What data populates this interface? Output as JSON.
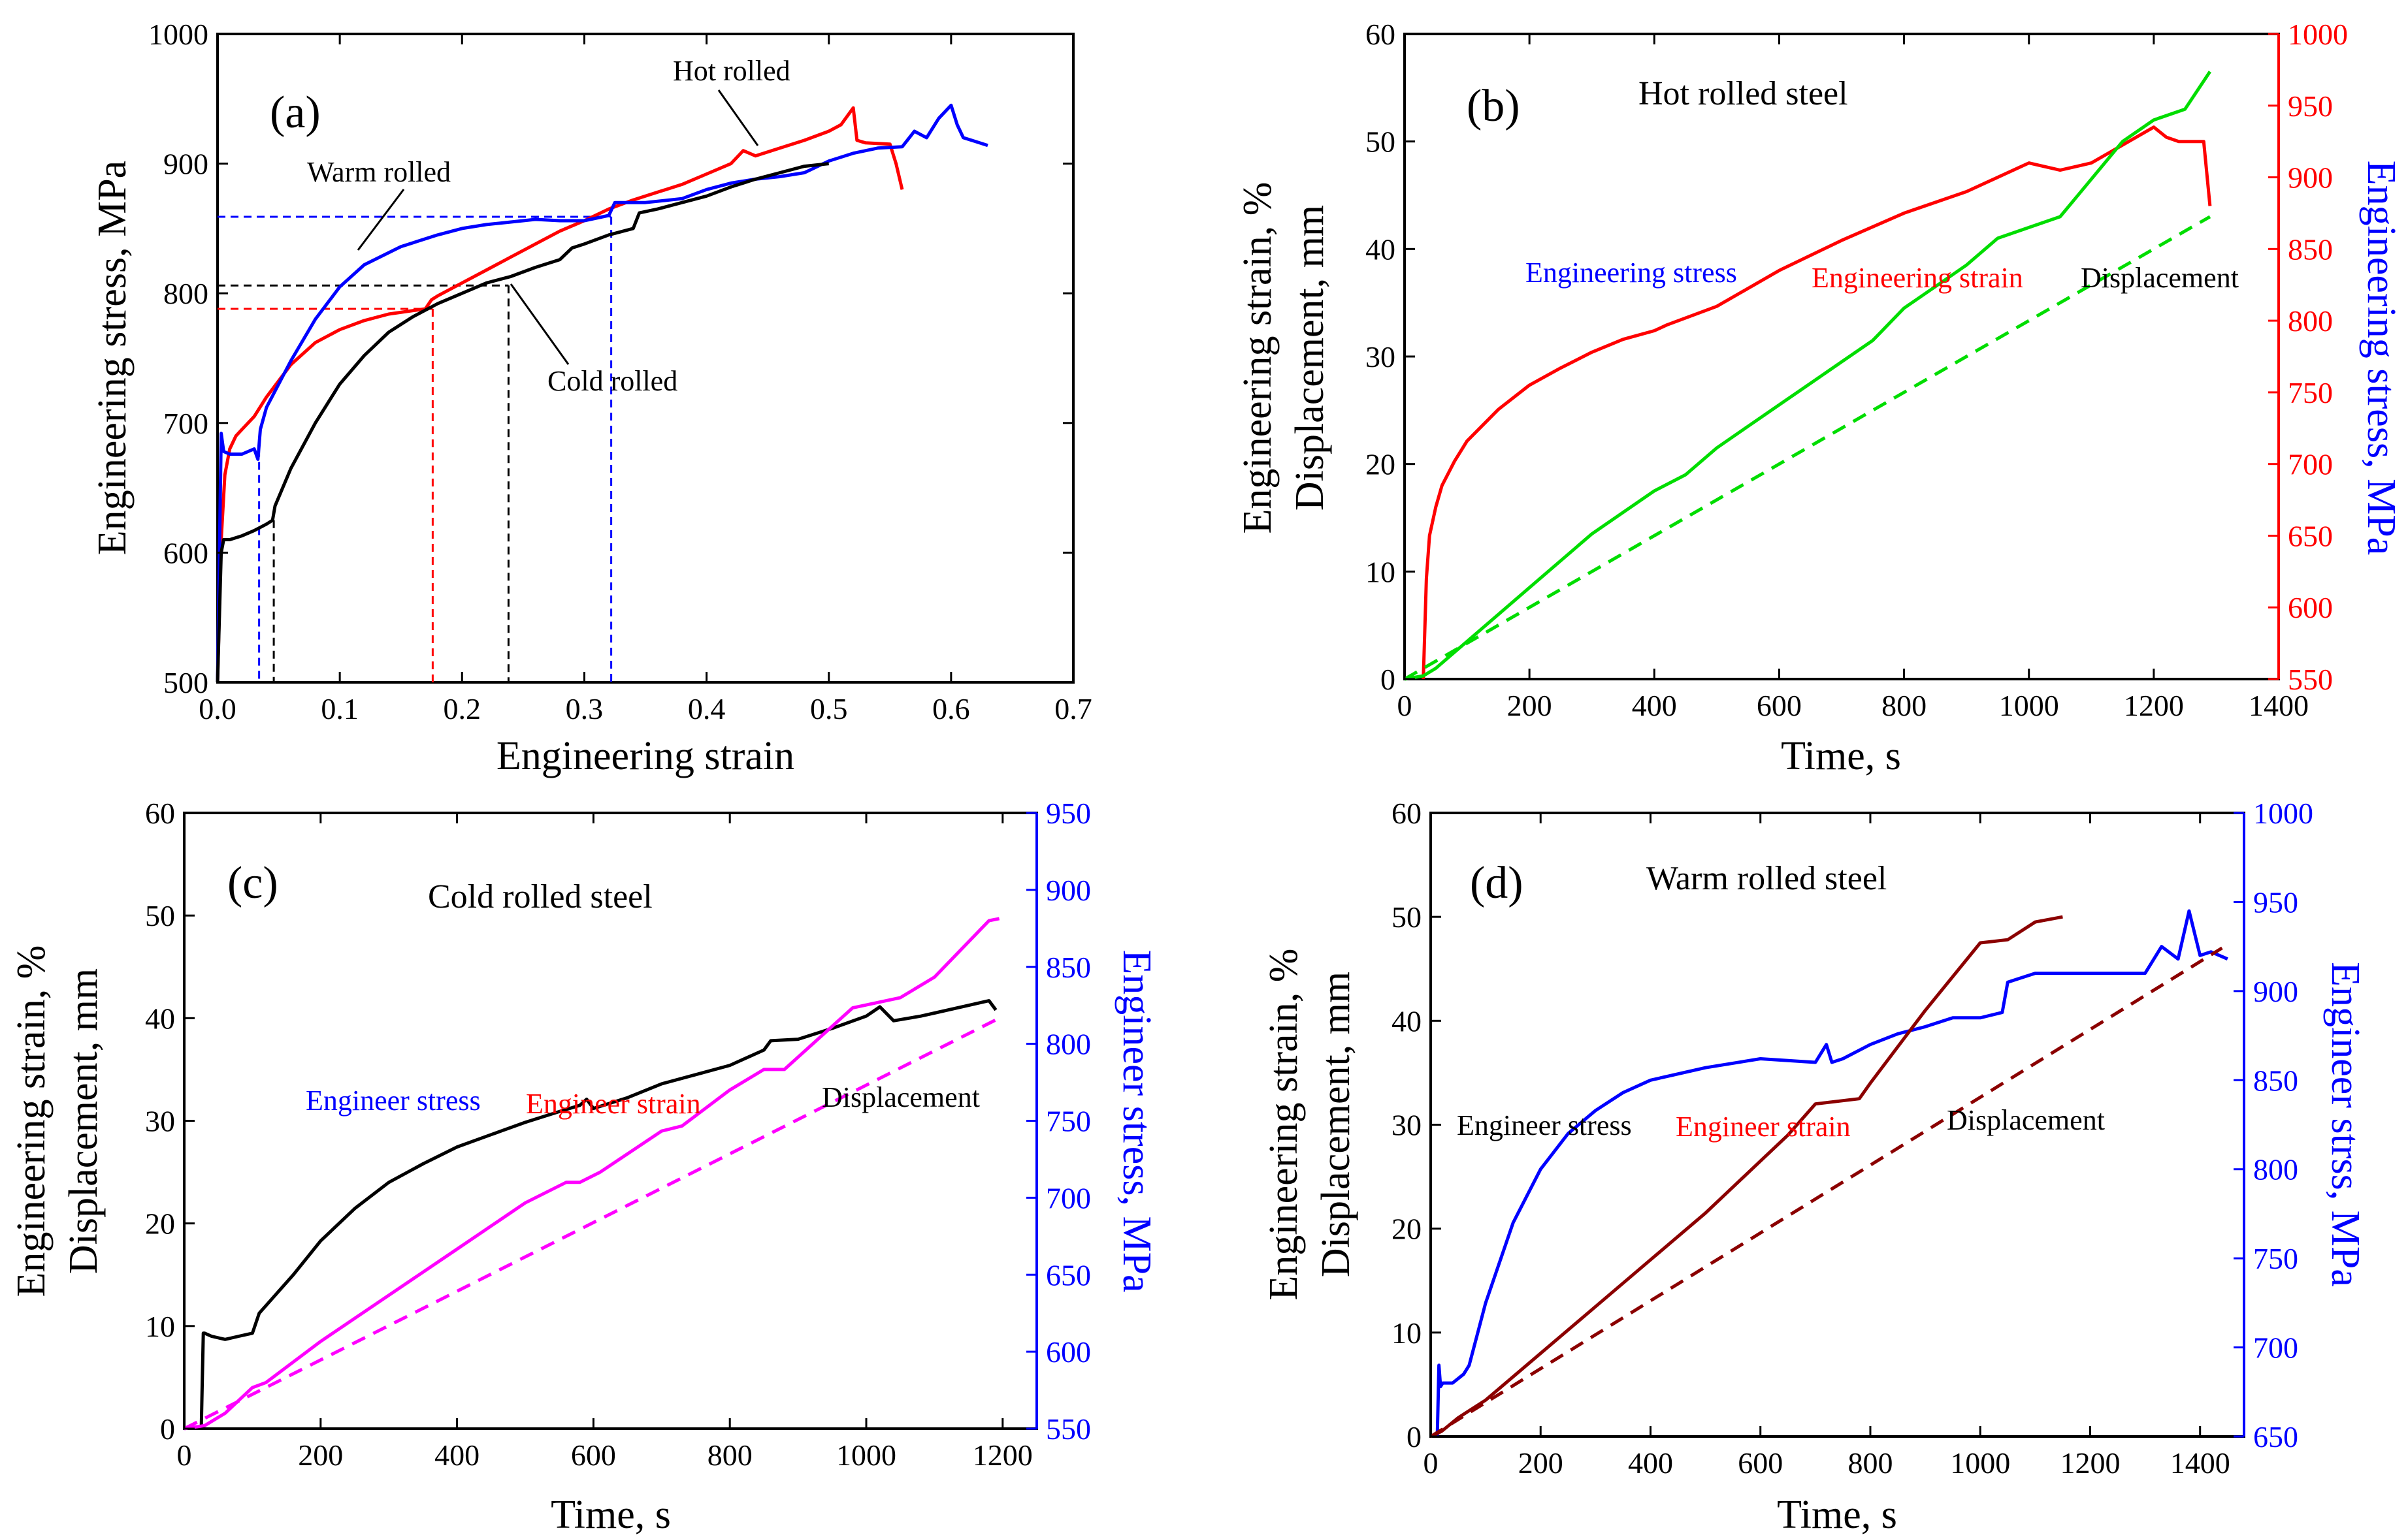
{
  "chart_data": [
    {
      "id": "a",
      "type": "line",
      "panel_label": "(a)",
      "xlabel": "Engineering strain",
      "ylabel": "Engineering stress, MPa",
      "xlim": [
        0.0,
        0.7
      ],
      "ylim": [
        500,
        1000
      ],
      "xticks": [
        "0.0",
        "0.1",
        "0.2",
        "0.3",
        "0.4",
        "0.5",
        "0.6",
        "0.7"
      ],
      "yticks": [
        "500",
        "600",
        "700",
        "800",
        "900",
        "1000"
      ],
      "annotations": {
        "warm": "Warm rolled",
        "hot": "Hot rolled",
        "cold": "Cold rolled"
      },
      "series": [
        {
          "name": "Hot rolled",
          "color": "#ff0000",
          "x": [
            0.0,
            0.003,
            0.006,
            0.01,
            0.015,
            0.02,
            0.03,
            0.04,
            0.06,
            0.08,
            0.1,
            0.12,
            0.14,
            0.17,
            0.175,
            0.18,
            0.2,
            0.22,
            0.24,
            0.26,
            0.28,
            0.3,
            0.32,
            0.34,
            0.36,
            0.38,
            0.4,
            0.42,
            0.43,
            0.44,
            0.46,
            0.48,
            0.5,
            0.51,
            0.52,
            0.523,
            0.53,
            0.55,
            0.555,
            0.56
          ],
          "y": [
            500,
            610,
            660,
            680,
            690,
            695,
            705,
            720,
            745,
            762,
            772,
            779,
            784,
            788,
            795,
            798,
            808,
            818,
            828,
            838,
            848,
            856,
            865,
            872,
            878,
            884,
            892,
            900,
            910,
            906,
            912,
            918,
            925,
            930,
            943,
            918,
            916,
            915,
            900,
            880
          ]
        },
        {
          "name": "Warm rolled",
          "color": "#0000ff",
          "x": [
            0.0,
            0.003,
            0.005,
            0.01,
            0.02,
            0.03,
            0.033,
            0.035,
            0.04,
            0.06,
            0.08,
            0.1,
            0.12,
            0.15,
            0.18,
            0.2,
            0.22,
            0.24,
            0.26,
            0.28,
            0.3,
            0.32,
            0.325,
            0.35,
            0.38,
            0.4,
            0.42,
            0.44,
            0.46,
            0.48,
            0.5,
            0.52,
            0.54,
            0.56,
            0.57,
            0.58,
            0.59,
            0.6,
            0.605,
            0.61,
            0.62,
            0.63
          ],
          "y": [
            500,
            692,
            678,
            676,
            676,
            680,
            672,
            695,
            712,
            748,
            780,
            805,
            822,
            836,
            845,
            850,
            853,
            855,
            857,
            856,
            856,
            860,
            870,
            870,
            873,
            880,
            885,
            888,
            890,
            893,
            902,
            908,
            912,
            913,
            925,
            920,
            935,
            945,
            930,
            920,
            917,
            914
          ]
        },
        {
          "name": "Cold rolled",
          "color": "#000000",
          "x": [
            0.0,
            0.003,
            0.005,
            0.01,
            0.02,
            0.03,
            0.04,
            0.045,
            0.047,
            0.06,
            0.08,
            0.1,
            0.12,
            0.14,
            0.16,
            0.18,
            0.2,
            0.22,
            0.24,
            0.26,
            0.28,
            0.29,
            0.3,
            0.32,
            0.34,
            0.345,
            0.36,
            0.38,
            0.4,
            0.42,
            0.44,
            0.46,
            0.48,
            0.5
          ],
          "y": [
            500,
            600,
            610,
            610,
            613,
            617,
            622,
            625,
            636,
            665,
            700,
            730,
            752,
            770,
            782,
            792,
            800,
            808,
            813,
            820,
            826,
            835,
            838,
            845,
            850,
            862,
            865,
            870,
            875,
            882,
            888,
            893,
            898,
            900
          ]
        }
      ]
    },
    {
      "id": "b",
      "type": "line",
      "panel_label": "(b)",
      "title": "Hot rolled steel",
      "xlabel": "Time, s",
      "ylabel_line1": "Engineering strain, %",
      "ylabel_line2": "Displacement, mm",
      "y2label": "Engineering stress, MPa",
      "xlim": [
        0,
        1400
      ],
      "ylim": [
        0,
        60
      ],
      "y2lim": [
        550,
        1000
      ],
      "xticks": [
        "0",
        "200",
        "400",
        "600",
        "800",
        "1000",
        "1200",
        "1400"
      ],
      "yticks": [
        "0",
        "10",
        "20",
        "30",
        "40",
        "50",
        "60"
      ],
      "y2ticks": [
        "550",
        "600",
        "650",
        "700",
        "750",
        "800",
        "850",
        "900",
        "950",
        "1000"
      ],
      "annotations": {
        "stress": "Engineering stress",
        "strain": "Engineering strain",
        "disp": "Displacement"
      },
      "series": [
        {
          "name": "Engineering stress",
          "axis": "right",
          "color": "#ff0000",
          "x": [
            30,
            35,
            40,
            50,
            60,
            80,
            100,
            150,
            200,
            250,
            300,
            350,
            400,
            420,
            500,
            600,
            700,
            800,
            900,
            1000,
            1050,
            1100,
            1200,
            1220,
            1240,
            1280,
            1290
          ],
          "y": [
            550,
            620,
            650,
            670,
            685,
            702,
            716,
            738,
            755,
            767,
            778,
            787,
            793,
            797,
            810,
            835,
            856,
            875,
            890,
            910,
            905,
            910,
            935,
            928,
            925,
            925,
            880
          ]
        },
        {
          "name": "Engineering strain",
          "axis": "left",
          "color": "#00dd00",
          "x": [
            0,
            30,
            50,
            100,
            200,
            300,
            400,
            450,
            500,
            550,
            600,
            650,
            700,
            750,
            800,
            850,
            900,
            950,
            1000,
            1050,
            1100,
            1150,
            1200,
            1250,
            1290
          ],
          "y": [
            0,
            0.3,
            1.0,
            3.5,
            8.5,
            13.5,
            17.5,
            19,
            21.5,
            23.5,
            25.5,
            27.5,
            29.5,
            31.5,
            34.5,
            36.5,
            38.5,
            41,
            42,
            43,
            46.5,
            50,
            52,
            53,
            56.5
          ]
        },
        {
          "name": "Displacement",
          "axis": "left",
          "color": "#00dd00",
          "dashed": true,
          "x": [
            0,
            1290
          ],
          "y": [
            0,
            43
          ]
        }
      ]
    },
    {
      "id": "c",
      "type": "line",
      "panel_label": "(c)",
      "title": "Cold rolled steel",
      "xlabel": "Time, s",
      "ylabel_line1": "Engineering strain, %",
      "ylabel_line2": "Displacement, mm",
      "y2label": "Engineer stress, MPa",
      "xlim": [
        0,
        1250
      ],
      "ylim": [
        0,
        60
      ],
      "y2lim": [
        550,
        950
      ],
      "xticks": [
        "0",
        "200",
        "400",
        "600",
        "800",
        "1000",
        "1200"
      ],
      "yticks": [
        "0",
        "10",
        "20",
        "30",
        "40",
        "50",
        "60"
      ],
      "y2ticks": [
        "550",
        "600",
        "650",
        "700",
        "750",
        "800",
        "850",
        "900",
        "950"
      ],
      "annotations": {
        "stress": "Engineer stress",
        "strain": "Engineer strain",
        "disp": "Displacement"
      },
      "series": [
        {
          "name": "Engineer stress",
          "axis": "right",
          "color": "#000000",
          "x": [
            25,
            28,
            30,
            40,
            60,
            80,
            100,
            110,
            120,
            160,
            200,
            250,
            300,
            350,
            400,
            450,
            500,
            550,
            580,
            590,
            600,
            650,
            700,
            750,
            800,
            850,
            860,
            900,
            950,
            1000,
            1020,
            1040,
            1080,
            1100,
            1150,
            1180,
            1190
          ],
          "y": [
            550,
            612,
            612,
            610,
            608,
            610,
            612,
            625,
            630,
            650,
            672,
            693,
            710,
            722,
            733,
            741,
            749,
            756,
            760,
            764,
            758,
            765,
            774,
            780,
            786,
            796,
            802,
            803,
            810,
            818,
            824,
            815,
            818,
            820,
            825,
            828,
            822
          ]
        },
        {
          "name": "Engineer strain",
          "axis": "left",
          "color": "#ff00ff",
          "x": [
            0,
            30,
            60,
            100,
            120,
            200,
            300,
            400,
            500,
            560,
            580,
            610,
            700,
            730,
            800,
            850,
            880,
            980,
            1050,
            1100,
            1180,
            1195
          ],
          "y": [
            0,
            0.3,
            1.5,
            4.0,
            4.5,
            8.5,
            13.0,
            17.5,
            22.0,
            24.0,
            24.0,
            25.0,
            29.0,
            29.5,
            33.0,
            35.0,
            35.0,
            41.0,
            42.0,
            44.0,
            49.5,
            49.7
          ]
        },
        {
          "name": "Displacement",
          "axis": "left",
          "color": "#ff00ff",
          "dashed": true,
          "x": [
            0,
            1195
          ],
          "y": [
            0,
            40
          ]
        }
      ]
    },
    {
      "id": "d",
      "type": "line",
      "panel_label": "(d)",
      "title": "Warm rolled steel",
      "xlabel": "Time, s",
      "ylabel_line1": "Engineering strain, %",
      "ylabel_line2": "Displacement, mm",
      "y2label": "Engineer strss, MPa",
      "xlim": [
        0,
        1480
      ],
      "ylim": [
        0,
        60
      ],
      "y2lim": [
        650,
        1000
      ],
      "xticks": [
        "0",
        "200",
        "400",
        "600",
        "800",
        "1000",
        "1200",
        "1400"
      ],
      "yticks": [
        "0",
        "10",
        "20",
        "30",
        "40",
        "50",
        "60"
      ],
      "y2ticks": [
        "650",
        "700",
        "750",
        "800",
        "850",
        "900",
        "950",
        "1000"
      ],
      "annotations": {
        "stress": "Engineer stress",
        "strain": "Engineer strain",
        "disp": "Displacement"
      },
      "series": [
        {
          "name": "Engineer stress",
          "axis": "right",
          "color": "#0000ff",
          "x": [
            12,
            15,
            18,
            22,
            40,
            60,
            70,
            100,
            150,
            200,
            250,
            300,
            350,
            400,
            500,
            600,
            700,
            720,
            730,
            750,
            800,
            850,
            900,
            950,
            1000,
            1040,
            1050,
            1100,
            1200,
            1300,
            1330,
            1360,
            1380,
            1400,
            1420,
            1450
          ],
          "y": [
            650,
            690,
            678,
            680,
            680,
            685,
            690,
            725,
            770,
            800,
            820,
            833,
            843,
            850,
            857,
            862,
            860,
            870,
            860,
            862,
            870,
            876,
            880,
            885,
            885,
            888,
            905,
            910,
            910,
            910,
            925,
            918,
            945,
            920,
            922,
            918
          ]
        },
        {
          "name": "Engineer strain",
          "axis": "left",
          "color": "#8b0000",
          "x": [
            0,
            20,
            50,
            100,
            200,
            300,
            400,
            500,
            600,
            650,
            700,
            780,
            800,
            850,
            900,
            1000,
            1050,
            1100,
            1150
          ],
          "y": [
            0,
            0.5,
            1.8,
            3.5,
            8.0,
            12.5,
            17.0,
            21.5,
            26.5,
            29.0,
            32.0,
            32.5,
            34.0,
            37.5,
            41.0,
            47.5,
            47.8,
            49.5,
            50.0
          ]
        },
        {
          "name": "Displacement",
          "axis": "left",
          "color": "#8b0000",
          "dashed": true,
          "x": [
            0,
            1440
          ],
          "y": [
            0,
            47
          ]
        }
      ]
    }
  ]
}
